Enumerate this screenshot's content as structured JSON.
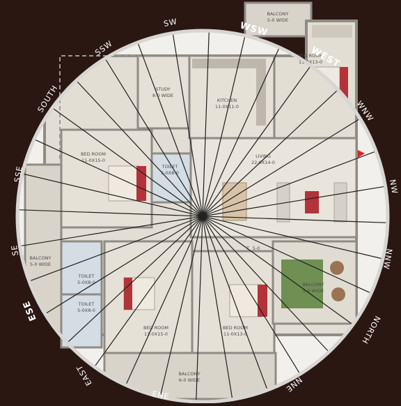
{
  "directions": {
    "sw": "SW",
    "wsw": "WSW",
    "west": "WEST",
    "wnw": "WNW",
    "nw": "NW",
    "nnw": "NNW",
    "north": "NORTH",
    "nne": "NNE",
    "ene": "ENE",
    "east": "EAST",
    "ese": "ESE",
    "se": "SE",
    "sse": "SSE",
    "south": "SOUTH",
    "ssw": "SSW"
  },
  "rooms": {
    "balcony_top": {
      "name": "BALCONY",
      "size": "5-0 WIDE"
    },
    "bedroom_tr": {
      "name": "BED ROOM",
      "size": "11-0X13-0"
    },
    "study": {
      "name": "STUDY",
      "size": "8-0 WIDE"
    },
    "kitchen": {
      "name": "KITCHEN",
      "size": "11-0X11-0"
    },
    "bedroom_left": {
      "name": "BED ROOM",
      "size": "11-0X15-0"
    },
    "toilet_mid": {
      "name": "TOILET",
      "size": "5-0X8-0"
    },
    "living": {
      "name": "LIVING",
      "size": "22-0X14-0"
    },
    "balcony_left": {
      "name": "BALCONY",
      "size": "5-0 WIDE"
    },
    "toilet_left1": {
      "name": "TOILET",
      "size": "5-0X8-0"
    },
    "toilet_left2": {
      "name": "TOILET",
      "size": "5-0X8-0"
    },
    "bedroom_bl": {
      "name": "BED ROOM",
      "size": "11-0X15-0"
    },
    "bedroom_br": {
      "name": "BED ROOM",
      "size": "11-0X13-0"
    },
    "balcony_right": {
      "name": "BALCONY",
      "size": "5-0 WIDE"
    },
    "balcony_bottom": {
      "name": "BALCONY",
      "size": "6-0 WIDE"
    },
    "toilet_small": {
      "name": "T",
      "size": "5-0"
    }
  },
  "colors": {
    "background": "#2a1712",
    "floor": "#e3ded4",
    "wall": "#8f8c86",
    "accent_bed": "#b3333a",
    "grass": "#6f8f53",
    "entry_marker": "#d8252b"
  }
}
